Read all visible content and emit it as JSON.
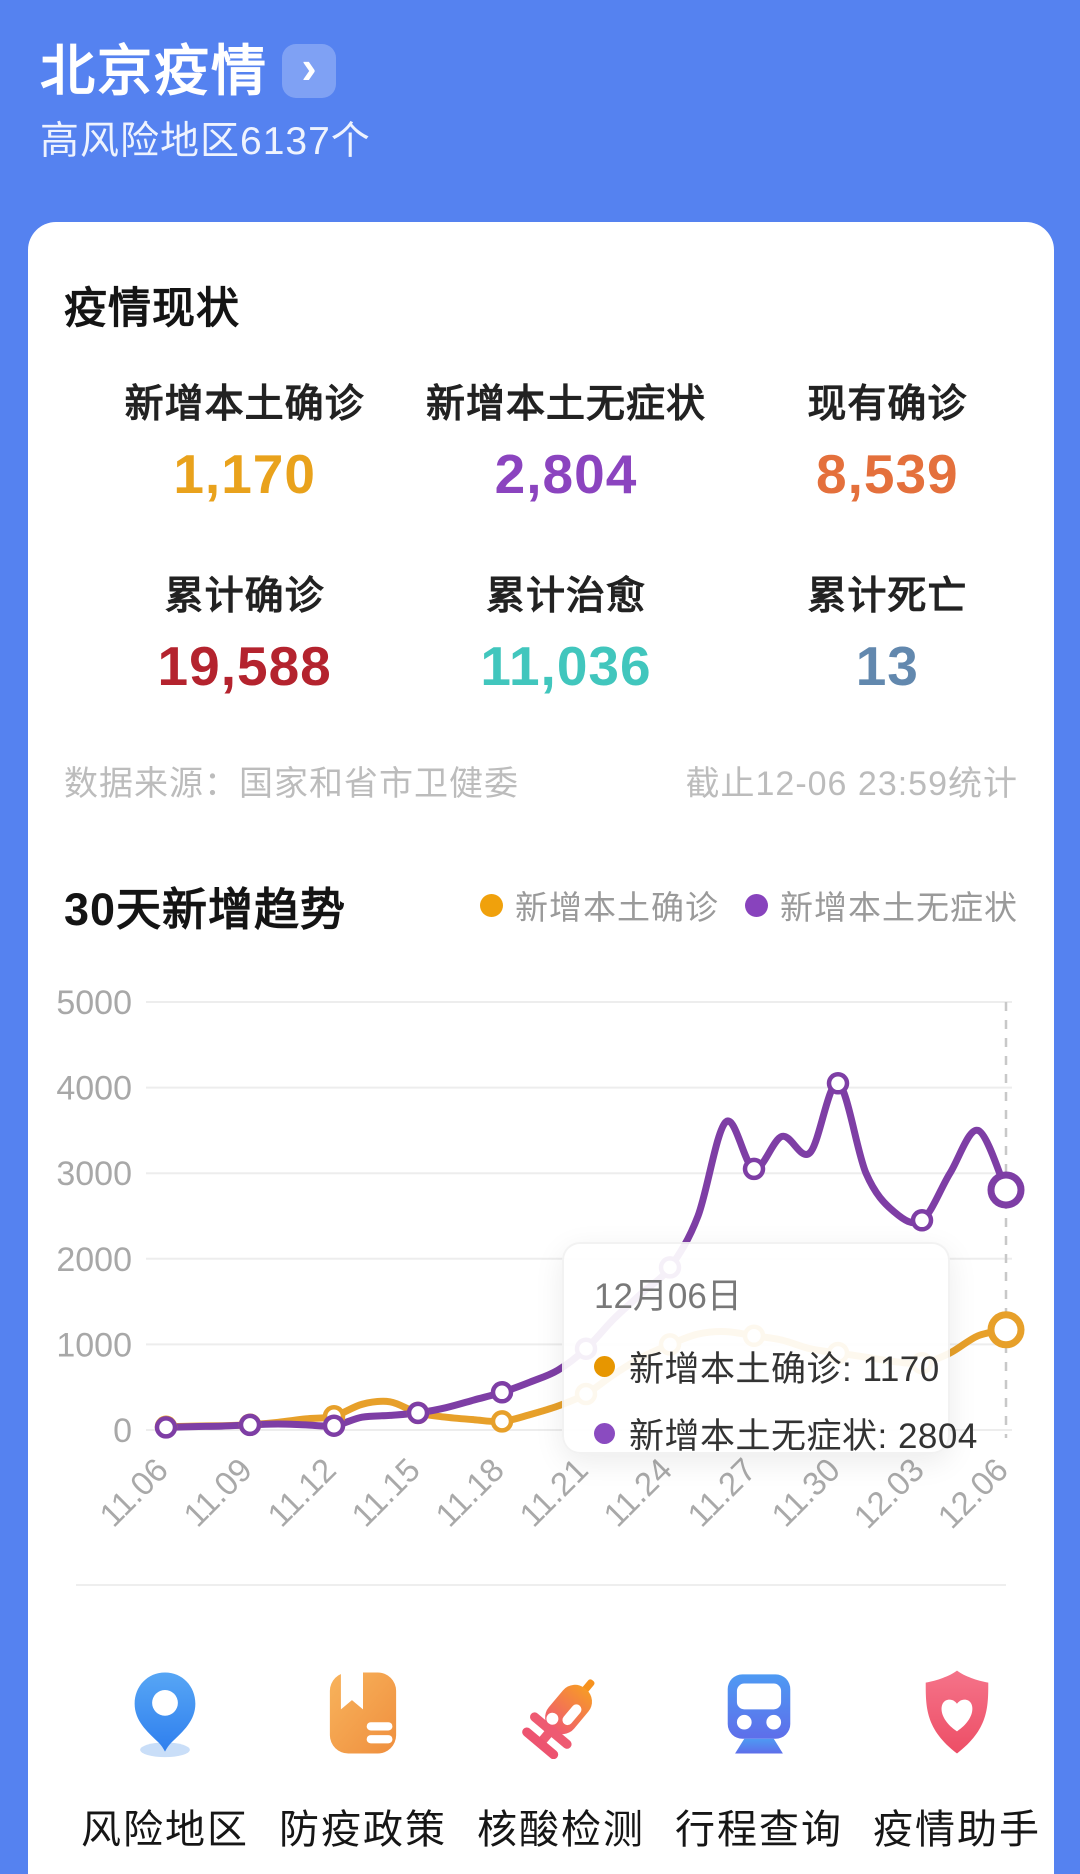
{
  "header": {
    "title": "北京疫情",
    "chevron": "›",
    "subtitle": "高风险地区6137个"
  },
  "status": {
    "section_title": "疫情现状",
    "stats": [
      {
        "label": "新增本土确诊",
        "value": "1,170",
        "color": "#E9A21C"
      },
      {
        "label": "新增本土无症状",
        "value": "2,804",
        "color": "#8B44BF"
      },
      {
        "label": "现有确诊",
        "value": "8,539",
        "color": "#E4703C"
      },
      {
        "label": "累计确诊",
        "value": "19,588",
        "color": "#B4232E"
      },
      {
        "label": "累计治愈",
        "value": "11,036",
        "color": "#41C6BD"
      },
      {
        "label": "累计死亡",
        "value": "13",
        "color": "#6288AE"
      }
    ],
    "source": "数据来源：国家和省市卫健委",
    "as_of": "截止12-06 23:59统计"
  },
  "trend": {
    "title": "30天新增趋势",
    "legend": [
      {
        "label": "新增本土确诊",
        "color": "#F0A10C"
      },
      {
        "label": "新增本土无症状",
        "color": "#8843BD"
      }
    ]
  },
  "chart_data": {
    "type": "line",
    "title": "30天新增趋势",
    "x": [
      "11.06",
      "11.07",
      "11.08",
      "11.09",
      "11.10",
      "11.11",
      "11.12",
      "11.13",
      "11.14",
      "11.15",
      "11.16",
      "11.17",
      "11.18",
      "11.19",
      "11.20",
      "11.21",
      "11.22",
      "11.23",
      "11.24",
      "11.25",
      "11.26",
      "11.27",
      "11.28",
      "11.29",
      "11.30",
      "12.01",
      "12.02",
      "12.03",
      "12.04",
      "12.05",
      "12.06"
    ],
    "series": [
      {
        "name": "新增本土确诊",
        "color": "#E7A02A",
        "values": [
          37,
          45,
          50,
          62,
          90,
          130,
          160,
          300,
          330,
          200,
          150,
          120,
          100,
          180,
          280,
          420,
          650,
          850,
          1000,
          1120,
          1150,
          1100,
          1050,
          950,
          900,
          850,
          800,
          780,
          900,
          1100,
          1170
        ]
      },
      {
        "name": "新增本土无症状",
        "color": "#7E3EA5",
        "values": [
          30,
          40,
          45,
          60,
          70,
          60,
          50,
          150,
          170,
          200,
          260,
          350,
          440,
          560,
          700,
          950,
          1300,
          1600,
          1900,
          2500,
          3600,
          3050,
          3430,
          3240,
          4050,
          3000,
          2550,
          2450,
          3000,
          3500,
          2804
        ]
      }
    ],
    "ylim": [
      0,
      5000
    ],
    "yticks": [
      0,
      1000,
      2000,
      3000,
      4000,
      5000
    ],
    "xtick_labels": [
      "11.06",
      "11.09",
      "11.12",
      "11.15",
      "11.18",
      "11.21",
      "11.24",
      "11.27",
      "11.30",
      "12.03",
      "12.06"
    ],
    "marker_interval_days": 3,
    "grid": true,
    "highlight_x": "12.06",
    "legend_position": "top-right"
  },
  "tooltip": {
    "title": "12月06日",
    "rows": [
      {
        "label": "新增本土确诊",
        "value": "1170",
        "text": "新增本土确诊: 1170",
        "color": "#E79600"
      },
      {
        "label": "新增本土无症状",
        "value": "2804",
        "text": "新增本土无症状: 2804",
        "color": "#8A4BC0"
      }
    ]
  },
  "shortcuts": [
    {
      "label": "风险地区",
      "icon": "location-pin-icon"
    },
    {
      "label": "防疫政策",
      "icon": "policy-book-icon"
    },
    {
      "label": "核酸检测",
      "icon": "syringe-icon"
    },
    {
      "label": "行程查询",
      "icon": "train-icon"
    },
    {
      "label": "疫情助手",
      "icon": "shield-heart-icon"
    }
  ]
}
